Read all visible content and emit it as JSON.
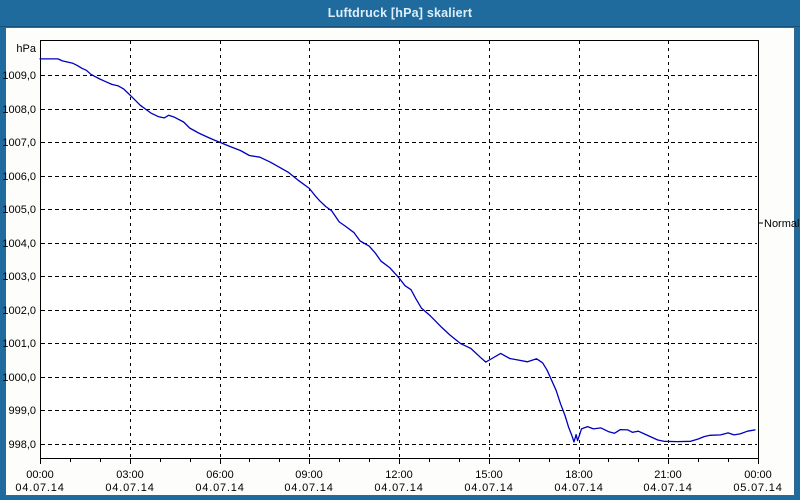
{
  "window": {
    "title": "Luftdruck [hPa] skaliert"
  },
  "colors": {
    "frame": "#1f6b9d",
    "title_text": "#ddeefa",
    "line": "#0000bd",
    "grid": "#000000",
    "plot_background": "#ffffff",
    "text": "#000000"
  },
  "chart_data": {
    "type": "line",
    "title": "Luftdruck [hPa] skaliert",
    "y_unit_label": "hPa",
    "grid": "dashed",
    "legend": "none",
    "y_axis": {
      "visible_range_hpa": [
        997.6,
        1010.0
      ],
      "ticks": [
        {
          "value": 1009,
          "label": "1009,0"
        },
        {
          "value": 1008,
          "label": "1008,0"
        },
        {
          "value": 1007,
          "label": "1007,0"
        },
        {
          "value": 1006,
          "label": "1006,0"
        },
        {
          "value": 1005,
          "label": "1005,0"
        },
        {
          "value": 1004,
          "label": "1004,0"
        },
        {
          "value": 1003,
          "label": "1003,0"
        },
        {
          "value": 1002,
          "label": "1002,0"
        },
        {
          "value": 1001,
          "label": "1001,0"
        },
        {
          "value": 1000,
          "label": "1000,0"
        },
        {
          "value": 999,
          "label": "999,0"
        },
        {
          "value": 998,
          "label": "998,0"
        }
      ]
    },
    "x_axis": {
      "unit": "hours",
      "range_hours": [
        0,
        24
      ],
      "minor_tick_every_hours": 1,
      "major_ticks": [
        {
          "hour": 0,
          "time": "00:00",
          "date": "04.07.14"
        },
        {
          "hour": 3,
          "time": "03:00",
          "date": "04.07.14"
        },
        {
          "hour": 6,
          "time": "06:00",
          "date": "04.07.14"
        },
        {
          "hour": 9,
          "time": "09:00",
          "date": "04.07.14"
        },
        {
          "hour": 12,
          "time": "12:00",
          "date": "04.07.14"
        },
        {
          "hour": 15,
          "time": "15:00",
          "date": "04.07.14"
        },
        {
          "hour": 18,
          "time": "18:00",
          "date": "04.07.14"
        },
        {
          "hour": 21,
          "time": "21:00",
          "date": "04.07.14"
        },
        {
          "hour": 24,
          "time": "00:00",
          "date": "05.07.14"
        }
      ]
    },
    "right_axis_annotation": {
      "label": "Normal",
      "value_hpa": 1004.6
    },
    "series": [
      {
        "name": "Luftdruck",
        "color": "#0000bd",
        "points_hours_vs_hpa": [
          [
            0,
            1009.48
          ],
          [
            0.3,
            1009.48
          ],
          [
            0.6,
            1009.48
          ],
          [
            0.75,
            1009.42
          ],
          [
            0.95,
            1009.38
          ],
          [
            1.1,
            1009.35
          ],
          [
            1.25,
            1009.28
          ],
          [
            1.4,
            1009.2
          ],
          [
            1.55,
            1009.14
          ],
          [
            1.7,
            1009.02
          ],
          [
            1.85,
            1008.95
          ],
          [
            2.0,
            1008.88
          ],
          [
            2.2,
            1008.8
          ],
          [
            2.4,
            1008.72
          ],
          [
            2.6,
            1008.68
          ],
          [
            2.8,
            1008.58
          ],
          [
            2.95,
            1008.45
          ],
          [
            3.15,
            1008.28
          ],
          [
            3.35,
            1008.1
          ],
          [
            3.5,
            1008.0
          ],
          [
            3.7,
            1007.87
          ],
          [
            3.95,
            1007.76
          ],
          [
            4.15,
            1007.72
          ],
          [
            4.3,
            1007.8
          ],
          [
            4.5,
            1007.74
          ],
          [
            4.8,
            1007.6
          ],
          [
            5.0,
            1007.42
          ],
          [
            5.3,
            1007.27
          ],
          [
            5.6,
            1007.15
          ],
          [
            5.85,
            1007.05
          ],
          [
            6.0,
            1007.0
          ],
          [
            6.35,
            1006.87
          ],
          [
            6.7,
            1006.75
          ],
          [
            7.0,
            1006.6
          ],
          [
            7.35,
            1006.55
          ],
          [
            7.7,
            1006.4
          ],
          [
            8.0,
            1006.25
          ],
          [
            8.3,
            1006.1
          ],
          [
            8.65,
            1005.85
          ],
          [
            9.0,
            1005.62
          ],
          [
            9.2,
            1005.4
          ],
          [
            9.35,
            1005.25
          ],
          [
            9.55,
            1005.08
          ],
          [
            9.75,
            1004.95
          ],
          [
            10.0,
            1004.62
          ],
          [
            10.2,
            1004.5
          ],
          [
            10.5,
            1004.3
          ],
          [
            10.7,
            1004.05
          ],
          [
            11.0,
            1003.9
          ],
          [
            11.2,
            1003.7
          ],
          [
            11.4,
            1003.45
          ],
          [
            11.7,
            1003.25
          ],
          [
            12.0,
            1002.95
          ],
          [
            12.2,
            1002.72
          ],
          [
            12.4,
            1002.6
          ],
          [
            12.55,
            1002.35
          ],
          [
            12.75,
            1002.05
          ],
          [
            13.05,
            1001.82
          ],
          [
            13.4,
            1001.5
          ],
          [
            13.7,
            1001.25
          ],
          [
            14.05,
            1001.0
          ],
          [
            14.4,
            1000.85
          ],
          [
            14.7,
            1000.6
          ],
          [
            14.9,
            1000.44
          ],
          [
            15.05,
            1000.52
          ],
          [
            15.4,
            1000.7
          ],
          [
            15.7,
            1000.55
          ],
          [
            16.0,
            1000.5
          ],
          [
            16.3,
            1000.45
          ],
          [
            16.6,
            1000.54
          ],
          [
            16.8,
            1000.42
          ],
          [
            16.95,
            1000.2
          ],
          [
            17.1,
            999.9
          ],
          [
            17.25,
            999.6
          ],
          [
            17.4,
            999.2
          ],
          [
            17.55,
            998.85
          ],
          [
            17.67,
            998.5
          ],
          [
            17.78,
            998.25
          ],
          [
            17.85,
            998.06
          ],
          [
            17.92,
            998.28
          ],
          [
            17.97,
            998.1
          ],
          [
            18.1,
            998.45
          ],
          [
            18.3,
            998.52
          ],
          [
            18.5,
            998.45
          ],
          [
            18.75,
            998.48
          ],
          [
            19.0,
            998.37
          ],
          [
            19.2,
            998.32
          ],
          [
            19.4,
            998.43
          ],
          [
            19.65,
            998.42
          ],
          [
            19.8,
            998.35
          ],
          [
            20.0,
            998.38
          ],
          [
            20.2,
            998.3
          ],
          [
            20.4,
            998.22
          ],
          [
            20.65,
            998.12
          ],
          [
            20.85,
            998.08
          ],
          [
            21.3,
            998.07
          ],
          [
            21.75,
            998.08
          ],
          [
            22.0,
            998.15
          ],
          [
            22.2,
            998.22
          ],
          [
            22.4,
            998.26
          ],
          [
            22.75,
            998.27
          ],
          [
            23.0,
            998.33
          ],
          [
            23.2,
            998.27
          ],
          [
            23.4,
            998.3
          ],
          [
            23.65,
            998.38
          ],
          [
            23.9,
            998.42
          ]
        ]
      }
    ]
  }
}
